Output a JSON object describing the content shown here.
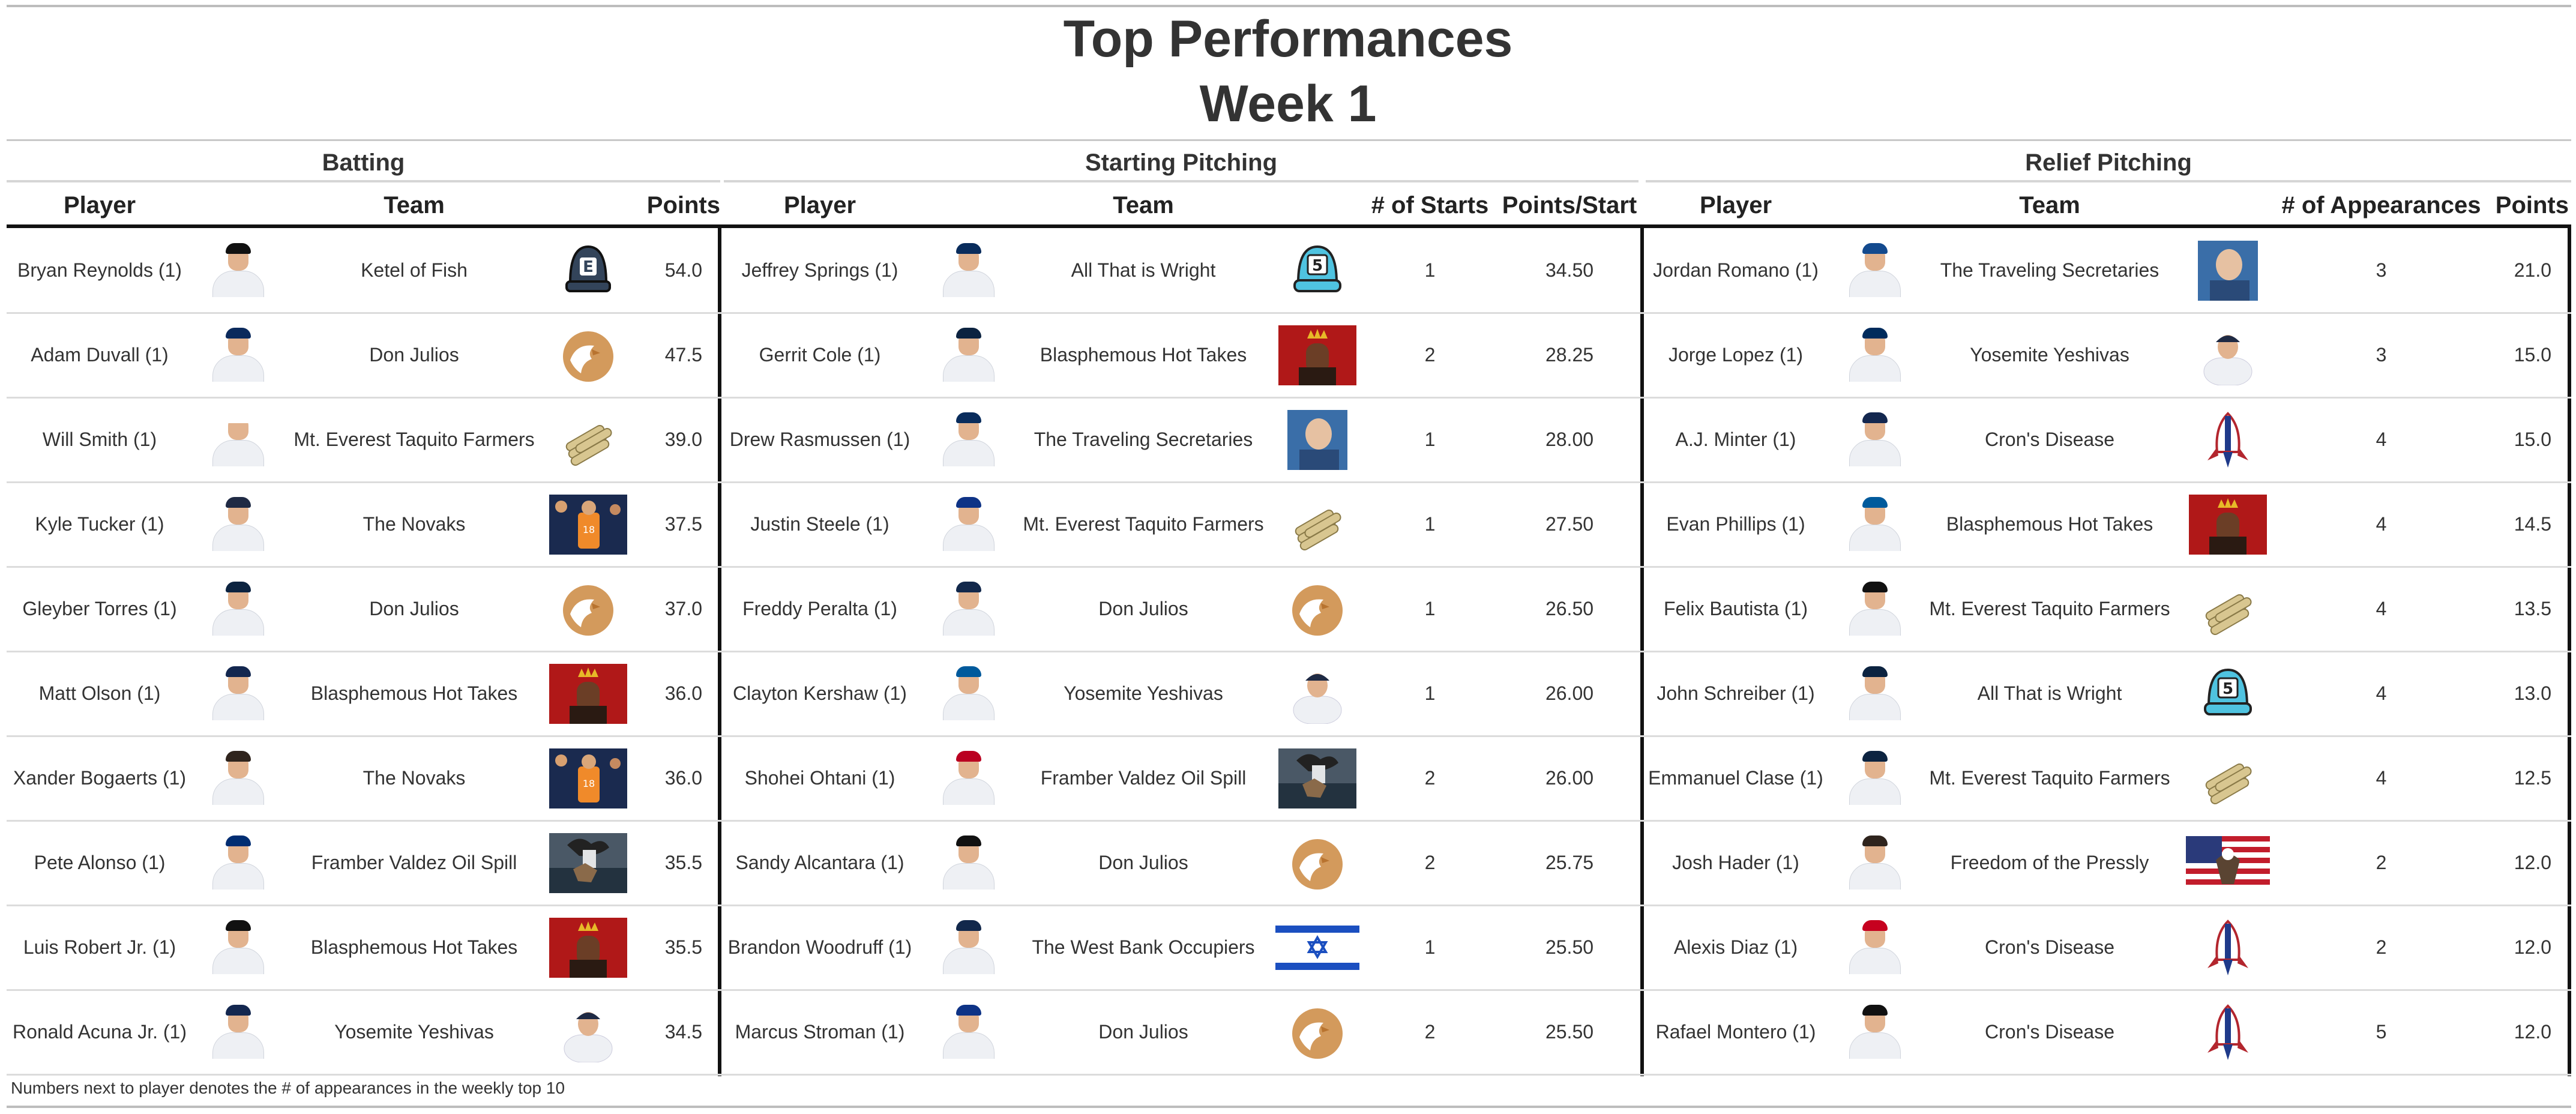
{
  "title": "Top Performances",
  "subtitle": "Week 1",
  "groups": {
    "batting": "Batting",
    "starting": "Starting Pitching",
    "relief": "Relief Pitching"
  },
  "columns": {
    "player": "Player",
    "team": "Team",
    "points": "Points",
    "starts": "# of Starts",
    "points_per_start": "Points/Start",
    "appearances": "# of Appearances"
  },
  "batting": [
    {
      "player": "Bryan Reynolds (1)",
      "team": "Ketel of Fish",
      "points": "54.0",
      "logo": "hat-e-logo",
      "player_cap": "#111111"
    },
    {
      "player": "Adam Duvall (1)",
      "team": "Don Julios",
      "points": "47.5",
      "logo": "eagle-logo",
      "player_cap": "#0b2a5c"
    },
    {
      "player": "Will Smith (1)",
      "team": "Mt. Everest Taquito Farmers",
      "points": "39.0",
      "logo": "taquito-logo",
      "player_cap": "#ffffff"
    },
    {
      "player": "Kyle Tucker (1)",
      "team": "The Novaks",
      "points": "37.5",
      "logo": "basketball-photo-logo",
      "player_cap": "#1f2a44"
    },
    {
      "player": "Gleyber Torres (1)",
      "team": "Don Julios",
      "points": "37.0",
      "logo": "eagle-logo",
      "player_cap": "#0c2340"
    },
    {
      "player": "Matt Olson (1)",
      "team": "Blasphemous Hot Takes",
      "points": "36.0",
      "logo": "crown-portrait-logo",
      "player_cap": "#13274f"
    },
    {
      "player": "Xander Bogaerts (1)",
      "team": "The Novaks",
      "points": "36.0",
      "logo": "basketball-photo-logo",
      "player_cap": "#2f241d"
    },
    {
      "player": "Pete Alonso (1)",
      "team": "Framber Valdez Oil Spill",
      "points": "35.5",
      "logo": "oil-spill-photo-logo",
      "player_cap": "#002d72"
    },
    {
      "player": "Luis Robert Jr. (1)",
      "team": "Blasphemous Hot Takes",
      "points": "35.5",
      "logo": "crown-portrait-logo",
      "player_cap": "#111111"
    },
    {
      "player": "Ronald Acuna Jr. (1)",
      "team": "Yosemite Yeshivas",
      "points": "34.5",
      "logo": "player-photo-logo",
      "player_cap": "#13274f"
    }
  ],
  "starting": [
    {
      "player": "Jeffrey Springs (1)",
      "team": "All That is Wright",
      "starts": "1",
      "pps": "34.50",
      "logo": "hat-5-logo",
      "player_cap": "#092c5c"
    },
    {
      "player": "Gerrit Cole (1)",
      "team": "Blasphemous Hot Takes",
      "starts": "2",
      "pps": "28.25",
      "logo": "crown-portrait-logo",
      "player_cap": "#0c2340"
    },
    {
      "player": "Drew Rasmussen (1)",
      "team": "The Traveling Secretaries",
      "starts": "1",
      "pps": "28.00",
      "logo": "bald-man-photo-logo",
      "player_cap": "#092c5c"
    },
    {
      "player": "Justin Steele (1)",
      "team": "Mt. Everest Taquito Farmers",
      "starts": "1",
      "pps": "27.50",
      "logo": "taquito-logo",
      "player_cap": "#0e3386"
    },
    {
      "player": "Freddy Peralta (1)",
      "team": "Don Julios",
      "starts": "1",
      "pps": "26.50",
      "logo": "eagle-logo",
      "player_cap": "#12284b"
    },
    {
      "player": "Clayton Kershaw (1)",
      "team": "Yosemite Yeshivas",
      "starts": "1",
      "pps": "26.00",
      "logo": "player-photo-logo",
      "player_cap": "#005a9c"
    },
    {
      "player": "Shohei Ohtani (1)",
      "team": "Framber Valdez Oil Spill",
      "starts": "2",
      "pps": "26.00",
      "logo": "oil-spill-photo-logo",
      "player_cap": "#ba0021"
    },
    {
      "player": "Sandy Alcantara (1)",
      "team": "Don Julios",
      "starts": "2",
      "pps": "25.75",
      "logo": "eagle-logo",
      "player_cap": "#111111"
    },
    {
      "player": "Brandon Woodruff (1)",
      "team": "The West Bank Occupiers",
      "starts": "1",
      "pps": "25.50",
      "logo": "israel-flag-logo",
      "player_cap": "#12284b"
    },
    {
      "player": "Marcus Stroman (1)",
      "team": "Don Julios",
      "starts": "2",
      "pps": "25.50",
      "logo": "eagle-logo",
      "player_cap": "#0e3386"
    }
  ],
  "relief": [
    {
      "player": "Jordan Romano (1)",
      "team": "The Traveling Secretaries",
      "apps": "3",
      "points": "21.0",
      "logo": "bald-man-photo-logo",
      "player_cap": "#134a8e"
    },
    {
      "player": "Jorge Lopez (1)",
      "team": "Yosemite Yeshivas",
      "apps": "3",
      "points": "15.0",
      "logo": "player-photo-logo",
      "player_cap": "#002b5c"
    },
    {
      "player": "A.J. Minter (1)",
      "team": "Cron's Disease",
      "apps": "4",
      "points": "15.0",
      "logo": "rocket-logo",
      "player_cap": "#13274f"
    },
    {
      "player": "Evan Phillips (1)",
      "team": "Blasphemous Hot Takes",
      "apps": "4",
      "points": "14.5",
      "logo": "crown-portrait-logo",
      "player_cap": "#005a9c"
    },
    {
      "player": "Felix Bautista (1)",
      "team": "Mt. Everest Taquito Farmers",
      "apps": "4",
      "points": "13.5",
      "logo": "taquito-logo",
      "player_cap": "#111111"
    },
    {
      "player": "John Schreiber (1)",
      "team": "All That is Wright",
      "apps": "4",
      "points": "13.0",
      "logo": "hat-5-logo",
      "player_cap": "#0c2340"
    },
    {
      "player": "Emmanuel Clase (1)",
      "team": "Mt. Everest Taquito Farmers",
      "apps": "4",
      "points": "12.5",
      "logo": "taquito-logo",
      "player_cap": "#0c2340"
    },
    {
      "player": "Josh Hader (1)",
      "team": "Freedom of the Pressly",
      "apps": "2",
      "points": "12.0",
      "logo": "usa-flag-eagle-logo",
      "player_cap": "#2f241d"
    },
    {
      "player": "Alexis Diaz (1)",
      "team": "Cron's Disease",
      "apps": "2",
      "points": "12.0",
      "logo": "rocket-logo",
      "player_cap": "#c6011f"
    },
    {
      "player": "Rafael Montero (1)",
      "team": "Cron's Disease",
      "apps": "5",
      "points": "12.0",
      "logo": "rocket-logo",
      "player_cap": "#111111"
    }
  ],
  "footnote": "Numbers next to player denotes the # of appearances in the weekly top 10"
}
